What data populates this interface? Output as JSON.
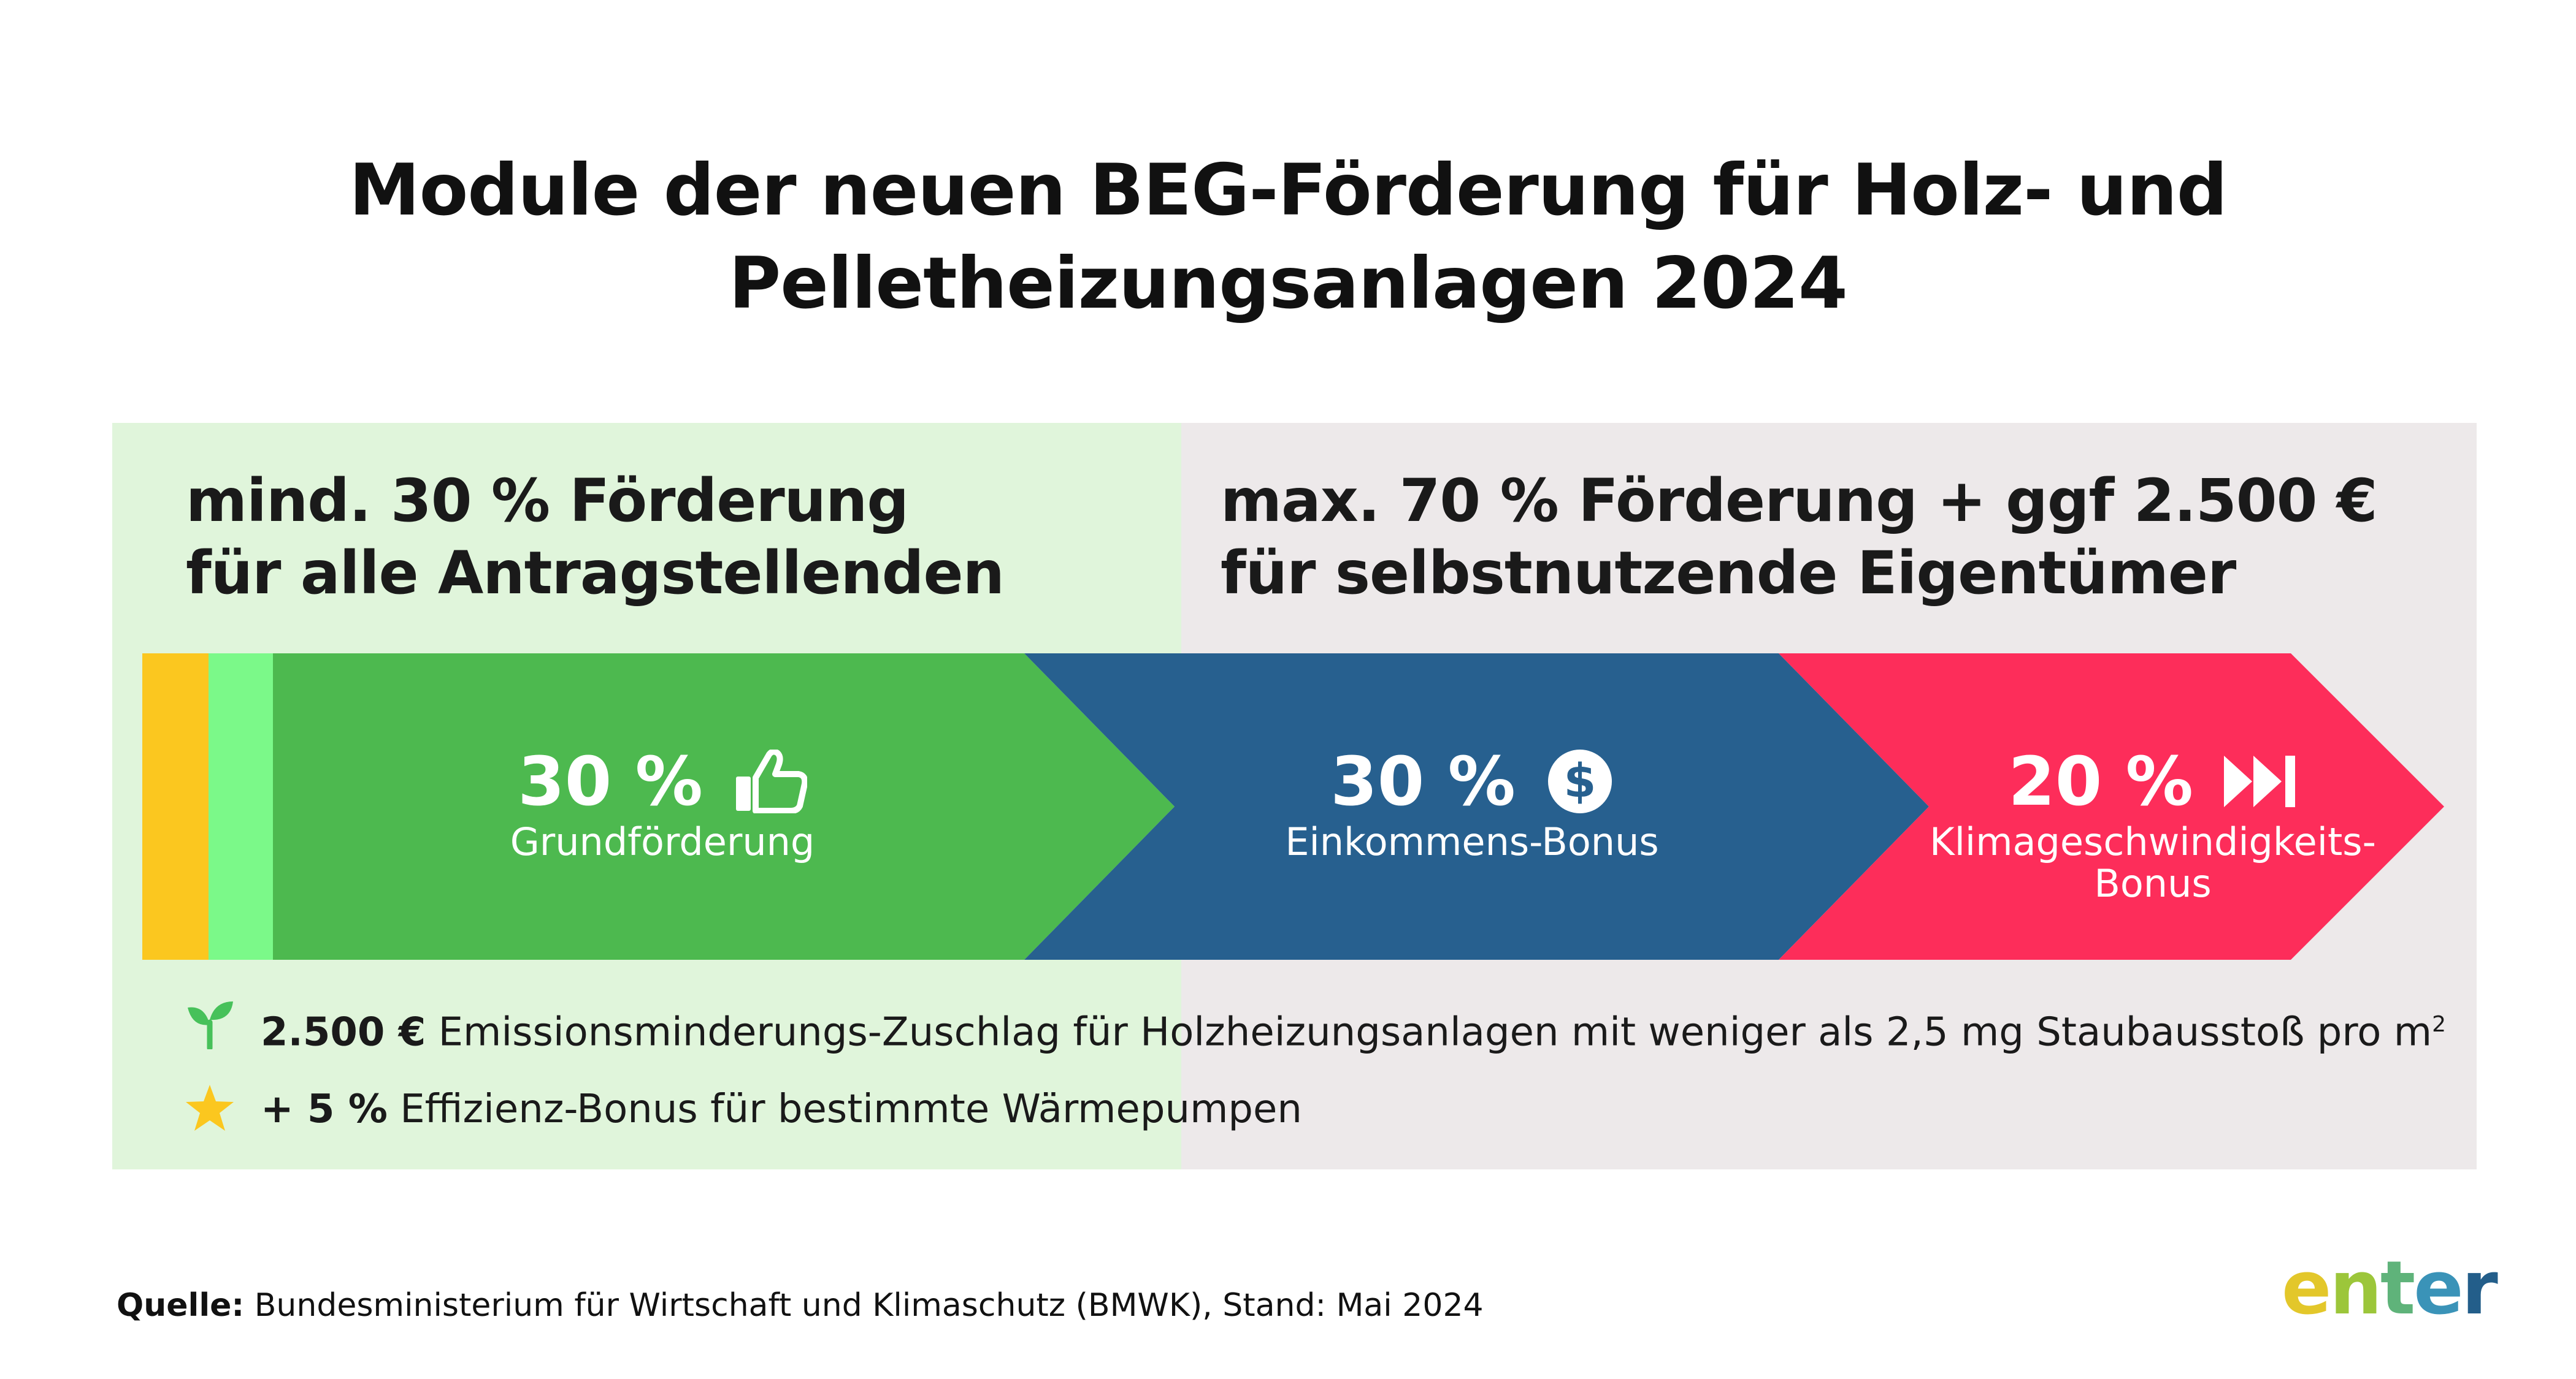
{
  "title": {
    "line1": "Module der neuen BEG-Förderung für Holz- und",
    "line2": "Pelletheizungsanlagen 2024"
  },
  "left_panel": {
    "line1": "mind. 30 % Förderung",
    "line2": "für alle Antragstellenden",
    "color": "#e0f5db"
  },
  "right_panel": {
    "line1": "max. 70 % Förderung + ggf 2.500 €",
    "line2": "für selbstnutzende Eigentümer",
    "color": "#ede9ea"
  },
  "segments": [
    {
      "percent": "30 %",
      "label": "Grundförderung",
      "icon": "thumbs-up-icon",
      "color": "#4db94f"
    },
    {
      "percent": "30 %",
      "label": "Einkommens-Bonus",
      "icon": "dollar-coin-icon",
      "color": "#27608f"
    },
    {
      "percent": "20 %",
      "label_line1": "Klimageschwindigkeits-",
      "label_line2": "Bonus",
      "icon": "fast-forward-icon",
      "color": "#fd2d5a"
    }
  ],
  "stripe_colors": {
    "yellow": "#fbc71f",
    "light_green": "#7bf989"
  },
  "notes": [
    {
      "bold": "2.500 €",
      "text": "Emissionsminderungs-Zuschlag für Holzheizungsanlagen mit weniger als 2,5 mg Staubausstoß pro m",
      "superscript": "2",
      "icon": "sprout-icon"
    },
    {
      "bold": "+ 5 %",
      "text": "Effizienz-Bonus für bestimmte Wärmepumpen",
      "icon": "star-icon"
    }
  ],
  "footer": {
    "bold": "Quelle:",
    "text": "Bundesministerium für Wirtschaft und Klimaschutz (BMWK), Stand: Mai 2024"
  },
  "logo": {
    "text": "enter",
    "letters": [
      "e",
      "n",
      "t",
      "e",
      "r"
    ],
    "colors": [
      "#e3c72a",
      "#9cc63a",
      "#5fb37a",
      "#3a93b8",
      "#235e8a"
    ]
  }
}
